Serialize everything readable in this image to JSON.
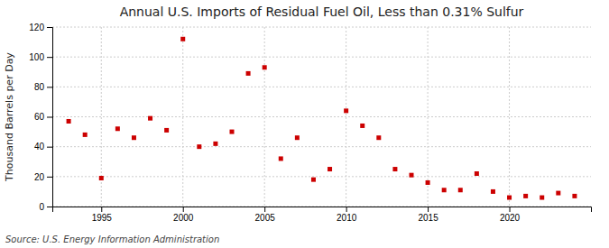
{
  "chart_data": {
    "type": "scatter",
    "title": "Annual U.S. Imports of Residual Fuel Oil, Less than 0.31% Sulfur",
    "ylabel": "Thousand Barrels per Day",
    "source": "Source: U.S. Energy Information Administration",
    "x": [
      1993,
      1994,
      1995,
      1996,
      1997,
      1998,
      1999,
      2000,
      2001,
      2002,
      2003,
      2004,
      2005,
      2006,
      2007,
      2008,
      2009,
      2010,
      2011,
      2012,
      2013,
      2014,
      2015,
      2016,
      2017,
      2018,
      2019,
      2020,
      2021,
      2022,
      2023,
      2024
    ],
    "values": [
      57,
      48,
      19,
      52,
      46,
      59,
      51,
      112,
      40,
      42,
      50,
      89,
      93,
      32,
      46,
      18,
      25,
      64,
      54,
      46,
      25,
      21,
      16,
      11,
      11,
      22,
      10,
      6,
      7,
      6,
      9,
      7
    ],
    "color": "#cc0000",
    "marker": "square",
    "xlim": [
      1992,
      2025
    ],
    "ylim": [
      0,
      120
    ],
    "xticks": [
      1995,
      2000,
      2005,
      2010,
      2015,
      2020
    ],
    "yticks": [
      0,
      20,
      40,
      60,
      80,
      100,
      120
    ],
    "grid": true
  }
}
